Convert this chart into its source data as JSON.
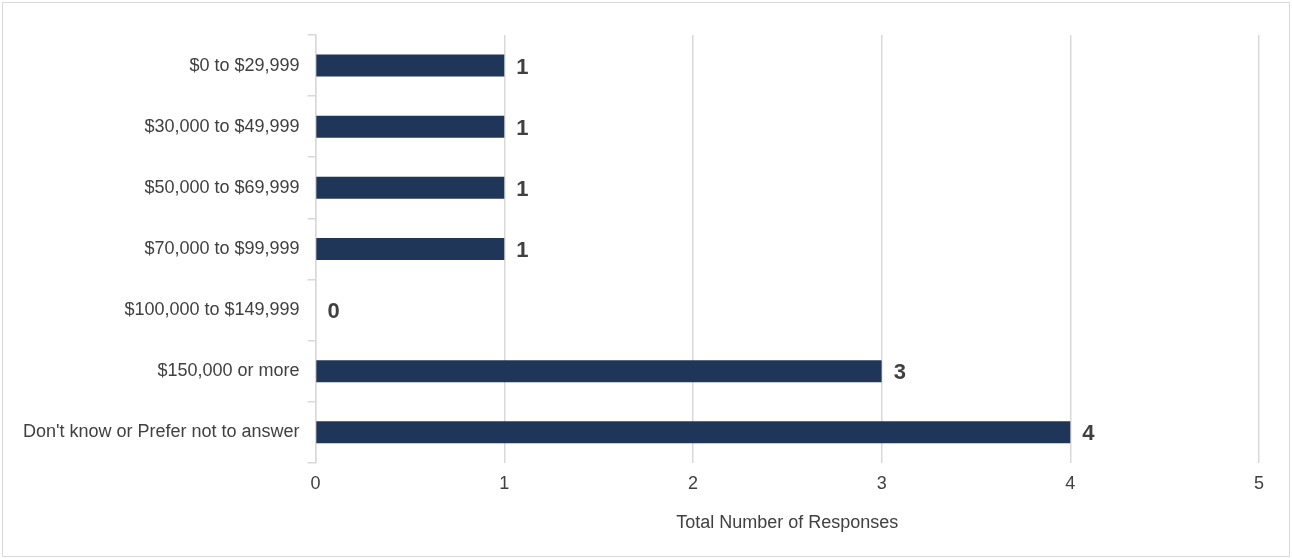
{
  "chart_data": {
    "type": "bar",
    "orientation": "horizontal",
    "xlabel": "Total Number of Responses",
    "categories": [
      "$0 to $29,999",
      "$30,000 to $49,999",
      "$50,000 to $69,999",
      "$70,000 to $99,999",
      "$100,000 to $149,999",
      "$150,000 or more",
      "Don't know or Prefer not to answer"
    ],
    "values": [
      1,
      1,
      1,
      1,
      0,
      3,
      4
    ],
    "color": "#1f3659",
    "xlim": [
      0,
      5
    ],
    "xticks": [
      0,
      1,
      2,
      3,
      4,
      5
    ],
    "grid": "x",
    "data_labels": true
  }
}
